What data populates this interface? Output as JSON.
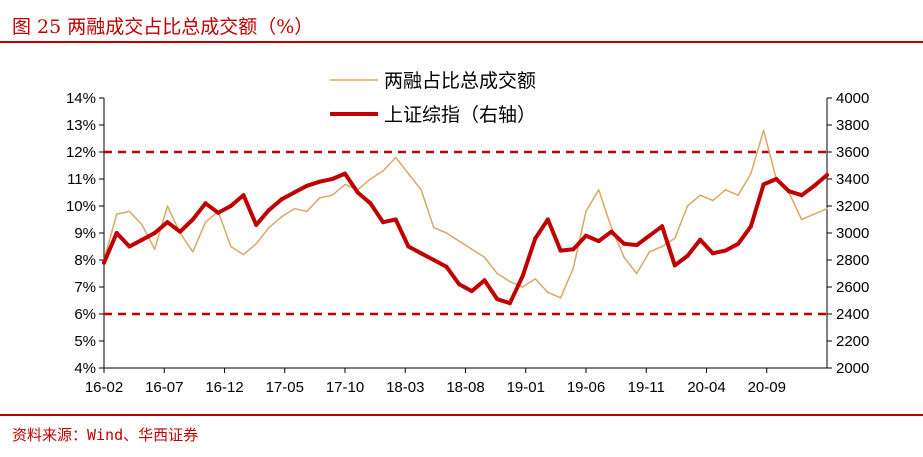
{
  "figure": {
    "title": "图 25   两融成交占比总成交额（%）",
    "source": "资料来源：Wind、华西证券"
  },
  "colors": {
    "accent": "#c00000",
    "series1": "#d9a866",
    "series2": "#c00000",
    "threshold": "#c00000"
  },
  "chart_data": {
    "type": "line",
    "title": "两融成交占比总成交额（%）",
    "x_tick_labels": [
      "16-02",
      "16-07",
      "16-12",
      "17-05",
      "17-10",
      "18-03",
      "18-08",
      "19-01",
      "19-06",
      "19-11",
      "20-04",
      "20-09"
    ],
    "xlim": [
      0,
      57
    ],
    "y_left": {
      "ylim": [
        4,
        14
      ],
      "tick_values": [
        4,
        5,
        6,
        7,
        8,
        9,
        10,
        11,
        12,
        13,
        14
      ],
      "tick_labels": [
        "4%",
        "5%",
        "6%",
        "7%",
        "8%",
        "9%",
        "10%",
        "11%",
        "12%",
        "13%",
        "14%"
      ]
    },
    "y_right": {
      "ylim": [
        2000,
        4000
      ],
      "tick_values": [
        2000,
        2200,
        2400,
        2600,
        2800,
        3000,
        3200,
        3400,
        3600,
        3800,
        4000
      ],
      "tick_labels": [
        "2000",
        "2200",
        "2400",
        "2600",
        "2800",
        "3000",
        "3200",
        "3400",
        "3600",
        "3800",
        "4000"
      ]
    },
    "reference_lines": [
      {
        "axis": "left",
        "value": 12,
        "style": "dashed"
      },
      {
        "axis": "left",
        "value": 6,
        "style": "dashed"
      }
    ],
    "series": [
      {
        "name": "两融占比总成交额",
        "axis": "left",
        "x": [
          0,
          1,
          2,
          3,
          4,
          5,
          6,
          7,
          8,
          9,
          10,
          11,
          12,
          13,
          14,
          15,
          16,
          17,
          18,
          19,
          20,
          21,
          22,
          23,
          24,
          25,
          26,
          27,
          28,
          29,
          30,
          31,
          32,
          33,
          34,
          35,
          36,
          37,
          38,
          39,
          40,
          41,
          42,
          43,
          44,
          45,
          46,
          47,
          48,
          49,
          50,
          51,
          52,
          53,
          54,
          55,
          56,
          57
        ],
        "values": [
          8.0,
          9.7,
          9.8,
          9.3,
          8.4,
          10.0,
          9.0,
          8.3,
          9.4,
          9.8,
          8.5,
          8.2,
          8.6,
          9.2,
          9.6,
          9.9,
          9.8,
          10.3,
          10.4,
          10.8,
          10.6,
          11.0,
          11.3,
          11.8,
          11.2,
          10.6,
          9.2,
          9.0,
          8.7,
          8.4,
          8.1,
          7.5,
          7.2,
          7.0,
          7.3,
          6.8,
          6.6,
          7.7,
          9.8,
          10.6,
          9.2,
          8.1,
          7.5,
          8.3,
          8.5,
          8.8,
          10.0,
          10.4,
          10.2,
          10.6,
          10.4,
          11.2,
          12.8,
          11.0,
          10.5,
          9.5,
          9.7,
          9.9
        ]
      },
      {
        "name": "上证综指（右轴）",
        "axis": "right",
        "x": [
          0,
          1,
          2,
          3,
          4,
          5,
          6,
          7,
          8,
          9,
          10,
          11,
          12,
          13,
          14,
          15,
          16,
          17,
          18,
          19,
          20,
          21,
          22,
          23,
          24,
          25,
          26,
          27,
          28,
          29,
          30,
          31,
          32,
          33,
          34,
          35,
          36,
          37,
          38,
          39,
          40,
          41,
          42,
          43,
          44,
          45,
          46,
          47,
          48,
          49,
          50,
          51,
          52,
          53,
          54,
          55,
          56,
          57
        ],
        "values": [
          2780,
          3000,
          2900,
          2950,
          3000,
          3080,
          3010,
          3100,
          3220,
          3150,
          3200,
          3280,
          3060,
          3170,
          3250,
          3300,
          3350,
          3380,
          3400,
          3440,
          3300,
          3220,
          3080,
          3100,
          2900,
          2850,
          2800,
          2750,
          2620,
          2570,
          2650,
          2510,
          2480,
          2680,
          2960,
          3100,
          2870,
          2880,
          2980,
          2940,
          3010,
          2920,
          2910,
          2980,
          3050,
          2760,
          2830,
          2950,
          2850,
          2870,
          2920,
          3050,
          3360,
          3400,
          3310,
          3280,
          3350,
          3430
        ]
      }
    ]
  }
}
